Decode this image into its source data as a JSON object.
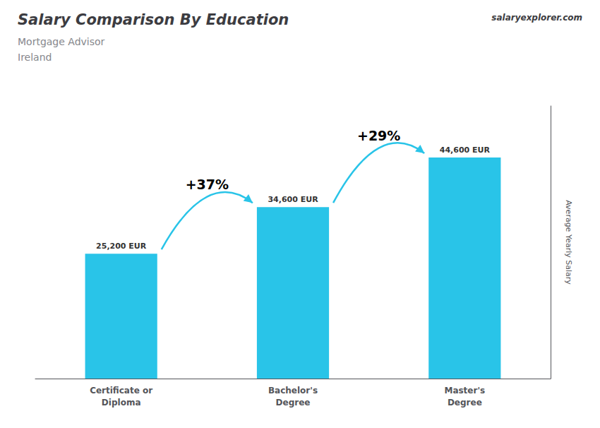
{
  "chart_data": {
    "type": "bar",
    "title": "Salary Comparison By Education",
    "subtitle": [
      "Mortgage Advisor",
      "Ireland"
    ],
    "ylabel": "Average Yearly Salary",
    "categories": [
      "Certificate or\nDiploma",
      "Bachelor's\nDegree",
      "Master's\nDegree"
    ],
    "values": [
      25200,
      34600,
      44600
    ],
    "value_labels": [
      "25,200 EUR",
      "34,600 EUR",
      "44,600 EUR"
    ],
    "data_labels": true,
    "annotations": [
      "+37%",
      "+29%",
      "salaryexplorer.com"
    ],
    "color": "#29c4e8",
    "ylim": [
      0,
      55000
    ],
    "tick_labels": "x",
    "grid": false
  }
}
